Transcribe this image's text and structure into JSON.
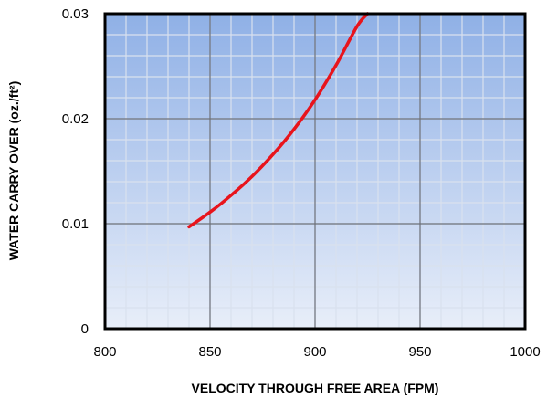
{
  "chart_data": {
    "type": "line",
    "title": "",
    "xlabel": "VELOCITY THROUGH FREE AREA (FPM)",
    "ylabel": "WATER CARRY OVER (oz./ft²)",
    "xlim": [
      800,
      1000
    ],
    "ylim": [
      0,
      0.03
    ],
    "xticks": [
      "800",
      "850",
      "900",
      "950",
      "1000"
    ],
    "yticks": [
      "0",
      "0.01",
      "0.02",
      "0.03"
    ],
    "grid": true,
    "legend": "none",
    "series": [
      {
        "x": [
          840,
          850,
          860,
          870,
          880,
          890,
          900,
          910,
          920,
          925
        ],
        "y": [
          0.0097,
          0.0111,
          0.0127,
          0.0145,
          0.0166,
          0.019,
          0.0218,
          0.0251,
          0.0288,
          0.03
        ]
      }
    ],
    "colors": {
      "line": "#e8141c",
      "plot_top": "#8fb0e6",
      "plot_bottom": "#e8eef9",
      "major_grid": "#6b6f78",
      "minor_grid": "#d9e1ee"
    }
  }
}
